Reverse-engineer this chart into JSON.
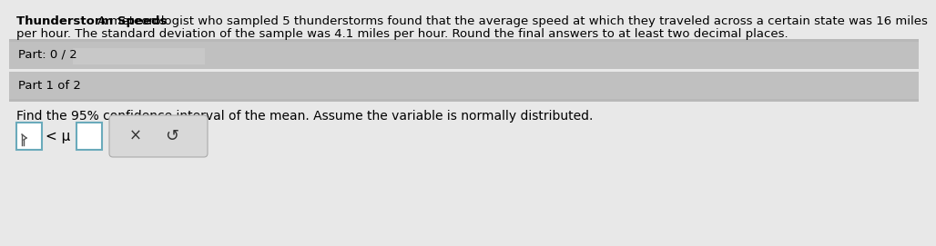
{
  "title_bold": "Thunderstorm Speeds",
  "title_normal": " A meteorologist who sampled 5 thunderstorms found that the average speed at which they traveled across a certain state was 16 miles",
  "line2": "per hour. The standard deviation of the sample was 4.1 miles per hour. Round the final answers to at least two decimal places.",
  "part_progress_label": "Part: 0 / 2",
  "part_label": "Part 1 of 2",
  "question": "Find the 95% confidence interval of the mean. Assume the variable is normally distributed.",
  "bg_top": "#e8e8e8",
  "bg_mid_dark": "#c0c0c0",
  "bg_mid_light": "#d4d4d4",
  "bg_bottom": "#e8e8e8",
  "progress_bar_color": "#c8c8c8",
  "box_border_color": "#6aaabb",
  "button_bg": "#d8d8d8",
  "font_size": 9.5,
  "font_size_question": 10.0
}
